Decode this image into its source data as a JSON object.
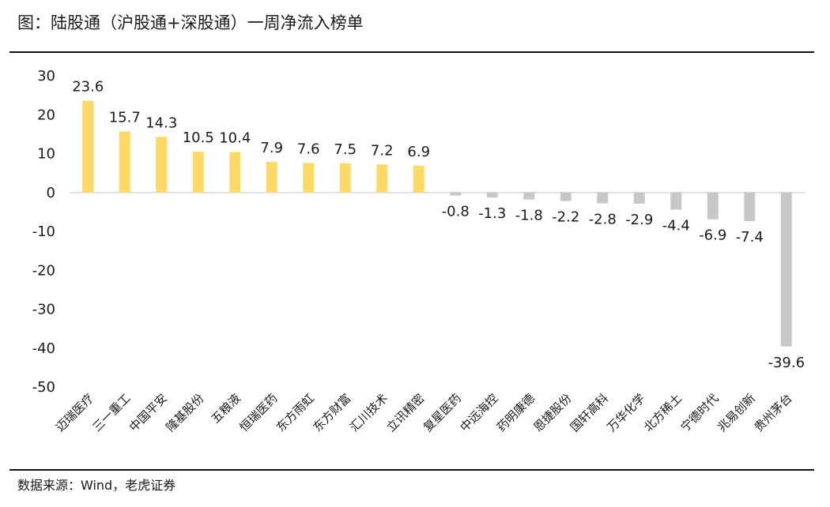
{
  "title": "图：陆股通（沪股通+深股通）一周净流入榜单",
  "source": "数据来源：Wind，老虎证券",
  "colors": {
    "positive": "#FFD966",
    "negative": "#C8C8C8",
    "zero_line": "#D9D9D9"
  },
  "chart_data": {
    "type": "bar",
    "title": "",
    "xlabel": "",
    "ylabel": "",
    "ylim": [
      -50,
      30
    ],
    "yticks": [
      30,
      20,
      10,
      0,
      -10,
      -20,
      -30,
      -40,
      -50
    ],
    "grid": false,
    "legend": "none",
    "categories": [
      "迈瑞医疗",
      "三一重工",
      "中国平安",
      "隆基股份",
      "五粮液",
      "恒瑞医药",
      "东方雨虹",
      "东方财富",
      "汇川技术",
      "立讯精密",
      "复星医药",
      "中远海控",
      "药明康德",
      "恩捷股份",
      "国轩高科",
      "万华化学",
      "北方稀土",
      "宁德时代",
      "兆易创新",
      "贵州茅台"
    ],
    "values": [
      23.6,
      15.7,
      14.3,
      10.5,
      10.4,
      7.9,
      7.6,
      7.5,
      7.2,
      6.9,
      -0.8,
      -1.3,
      -1.8,
      -2.2,
      -2.8,
      -2.9,
      -4.4,
      -6.9,
      -7.4,
      -39.6
    ],
    "data_labels": [
      "23.6",
      "15.7",
      "14.3",
      "10.5",
      "10.4",
      "7.9",
      "7.6",
      "7.5",
      "7.2",
      "6.9",
      "-0.8",
      "-1.3",
      "-1.8",
      "-2.2",
      "-2.8",
      "-2.9",
      "-4.4",
      "-6.9",
      "-7.4",
      "-39.6"
    ]
  }
}
